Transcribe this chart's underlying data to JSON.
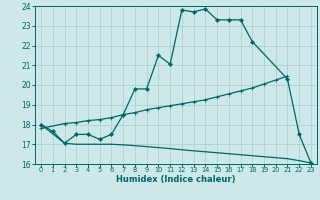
{
  "title": "",
  "xlabel": "Humidex (Indice chaleur)",
  "xlim": [
    -0.5,
    23.5
  ],
  "ylim": [
    16,
    24
  ],
  "xticks": [
    0,
    1,
    2,
    3,
    4,
    5,
    6,
    7,
    8,
    9,
    10,
    11,
    12,
    13,
    14,
    15,
    16,
    17,
    18,
    19,
    20,
    21,
    22,
    23
  ],
  "yticks": [
    16,
    17,
    18,
    19,
    20,
    21,
    22,
    23,
    24
  ],
  "bg_color": "#cce8e8",
  "grid_color": "#aacccc",
  "line_color": "#006666",
  "line1_x": [
    0,
    1,
    2,
    3,
    4,
    5,
    6,
    7,
    8,
    9,
    10,
    11,
    12,
    13,
    14,
    15,
    16,
    17,
    18,
    21,
    22,
    23
  ],
  "line1_y": [
    18.0,
    17.65,
    17.05,
    17.5,
    17.5,
    17.25,
    17.5,
    18.5,
    19.8,
    19.8,
    21.5,
    21.05,
    23.8,
    23.7,
    23.85,
    23.3,
    23.3,
    23.3,
    22.2,
    20.3,
    17.5,
    16.05
  ],
  "line2_x": [
    0,
    2,
    3,
    4,
    5,
    6,
    7,
    8,
    9,
    10,
    11,
    12,
    13,
    14,
    15,
    16,
    17,
    18,
    19,
    20,
    21
  ],
  "line2_y": [
    17.8,
    18.05,
    18.1,
    18.2,
    18.25,
    18.35,
    18.5,
    18.6,
    18.75,
    18.85,
    18.95,
    19.05,
    19.15,
    19.25,
    19.4,
    19.55,
    19.7,
    19.85,
    20.05,
    20.25,
    20.45
  ],
  "line3_x": [
    0,
    2,
    3,
    4,
    5,
    6,
    7,
    8,
    9,
    10,
    11,
    12,
    13,
    14,
    15,
    16,
    17,
    18,
    19,
    20,
    21,
    22,
    23
  ],
  "line3_y": [
    18.0,
    17.05,
    17.0,
    17.0,
    17.0,
    17.0,
    16.97,
    16.93,
    16.88,
    16.83,
    16.78,
    16.72,
    16.67,
    16.62,
    16.57,
    16.52,
    16.47,
    16.42,
    16.37,
    16.32,
    16.27,
    16.17,
    16.05
  ]
}
